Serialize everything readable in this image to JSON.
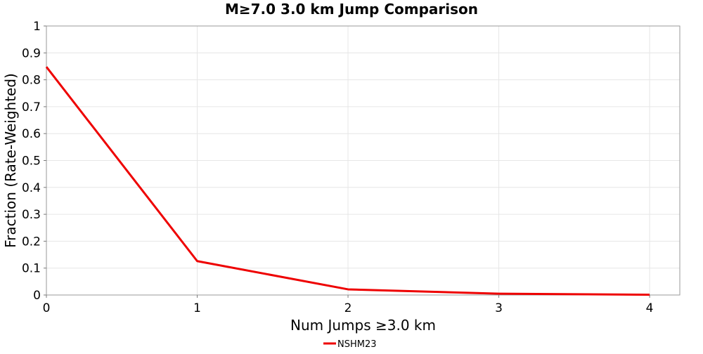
{
  "chart_data": {
    "type": "line",
    "title": "M≥7.0 3.0 km Jump Comparison",
    "xlabel": "Num Jumps ≥3.0 km",
    "ylabel": "Fraction (Rate-Weighted)",
    "xlim": [
      0,
      4.2
    ],
    "ylim": [
      0,
      1
    ],
    "x_ticks": [
      0,
      1,
      2,
      3,
      4
    ],
    "y_ticks": [
      0,
      0.1,
      0.2,
      0.3,
      0.4,
      0.5,
      0.6,
      0.7,
      0.8,
      0.9,
      1
    ],
    "x_tick_labels": [
      "0",
      "1",
      "2",
      "3",
      "4"
    ],
    "y_tick_labels": [
      "0",
      "0.1",
      "0.2",
      "0.3",
      "0.4",
      "0.5",
      "0.6",
      "0.7",
      "0.8",
      "0.9",
      "1"
    ],
    "grid": true,
    "legend_position": "bottom-center",
    "series": [
      {
        "name": "NSHM23",
        "color": "#ee0000",
        "x": [
          0,
          1,
          2,
          3,
          4
        ],
        "y": [
          0.848,
          0.126,
          0.021,
          0.005,
          0.001
        ]
      }
    ]
  }
}
